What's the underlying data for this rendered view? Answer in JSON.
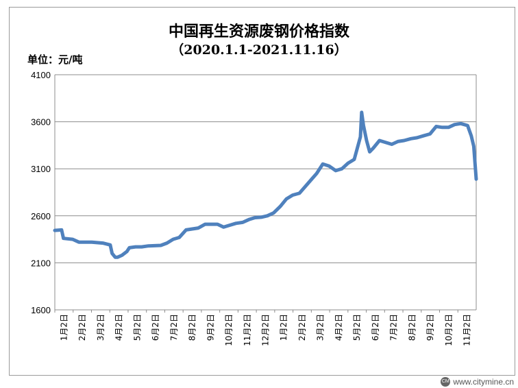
{
  "chart_data": {
    "type": "line",
    "title": "中国再生资源废钢价格指数",
    "subtitle": "（2020.1.1-2021.11.16）",
    "ylabel": "单位：元/吨",
    "ylim": [
      1600,
      4100
    ],
    "yticks": [
      1600,
      2100,
      2600,
      3100,
      3600,
      4100
    ],
    "grid": true,
    "legend": "none",
    "line_color": "#4f81bd",
    "xticks": [
      "1月2日",
      "2月2日",
      "3月2日",
      "4月2日",
      "5月2日",
      "6月2日",
      "7月2日",
      "8月2日",
      "9月2日",
      "10月2日",
      "11月2日",
      "12月2日",
      "1月2日",
      "2月2日",
      "3月2日",
      "4月2日",
      "5月2日",
      "6月2日",
      "7月2日",
      "8月2日",
      "9月2日",
      "10月2日",
      "11月2日"
    ],
    "x": [
      "2020-01-02",
      "2020-01-13",
      "2020-01-16",
      "2020-01-31",
      "2020-02-10",
      "2020-03-02",
      "2020-03-20",
      "2020-04-01",
      "2020-04-04",
      "2020-04-09",
      "2020-04-13",
      "2020-04-20",
      "2020-04-28",
      "2020-05-02",
      "2020-05-12",
      "2020-05-22",
      "2020-06-02",
      "2020-06-22",
      "2020-07-02",
      "2020-07-12",
      "2020-07-22",
      "2020-08-02",
      "2020-08-22",
      "2020-09-02",
      "2020-09-22",
      "2020-10-02",
      "2020-10-12",
      "2020-10-22",
      "2020-11-02",
      "2020-11-12",
      "2020-11-22",
      "2020-12-02",
      "2020-12-12",
      "2020-12-22",
      "2021-01-02",
      "2021-01-12",
      "2021-01-22",
      "2021-02-02",
      "2021-02-22",
      "2021-03-02",
      "2021-03-12",
      "2021-03-22",
      "2021-04-02",
      "2021-04-12",
      "2021-04-22",
      "2021-05-02",
      "2021-05-12",
      "2021-05-14",
      "2021-05-17",
      "2021-05-22",
      "2021-05-27",
      "2021-06-02",
      "2021-06-12",
      "2021-06-22",
      "2021-07-02",
      "2021-07-12",
      "2021-07-22",
      "2021-08-02",
      "2021-08-12",
      "2021-08-22",
      "2021-09-02",
      "2021-09-12",
      "2021-09-22",
      "2021-10-02",
      "2021-10-12",
      "2021-10-22",
      "2021-11-02",
      "2021-11-08",
      "2021-11-12",
      "2021-11-16"
    ],
    "values": [
      2445,
      2450,
      2360,
      2350,
      2320,
      2320,
      2310,
      2290,
      2200,
      2160,
      2160,
      2180,
      2220,
      2260,
      2270,
      2270,
      2280,
      2285,
      2310,
      2350,
      2370,
      2450,
      2470,
      2510,
      2510,
      2480,
      2500,
      2520,
      2530,
      2560,
      2580,
      2585,
      2600,
      2630,
      2700,
      2780,
      2820,
      2840,
      2990,
      3050,
      3150,
      3130,
      3080,
      3100,
      3160,
      3200,
      3440,
      3700,
      3560,
      3400,
      3280,
      3320,
      3400,
      3380,
      3360,
      3390,
      3400,
      3420,
      3430,
      3450,
      3470,
      3550,
      3540,
      3540,
      3570,
      3580,
      3560,
      3450,
      3340,
      2990
    ]
  },
  "watermark": {
    "logo_text": "CITY MINE",
    "text": "www.citymine.cn"
  }
}
